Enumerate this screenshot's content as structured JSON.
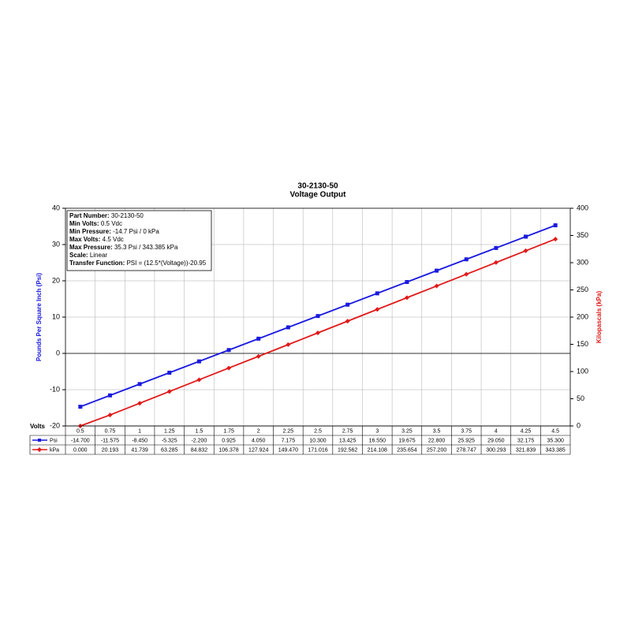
{
  "chart_data": {
    "type": "line",
    "title": "30-2130-50",
    "subtitle": "Voltage Output",
    "x_label": "Volts",
    "y_label": "Pounds Per Square Inch (Psi)",
    "y2_label": "Kilopascals (kPa)",
    "categories": [
      "0.5",
      "0.75",
      "1",
      "1.25",
      "1.5",
      "1.75",
      "2",
      "2.25",
      "2.5",
      "2.75",
      "3",
      "3.25",
      "3.5",
      "3.75",
      "4",
      "4.25",
      "4.5"
    ],
    "series": [
      {
        "name": "Psi",
        "color": "#1a1adf",
        "marker": "square",
        "values": [
          -14.7,
          -11.575,
          -8.45,
          -5.325,
          -2.2,
          0.925,
          4.05,
          7.175,
          10.3,
          13.425,
          16.55,
          19.675,
          22.8,
          25.925,
          29.05,
          32.175,
          35.3
        ],
        "value_labels": [
          "-14.700",
          "-11.575",
          "-8.450",
          "-5.325",
          "-2.200",
          "0.925",
          "4.050",
          "7.175",
          "10.300",
          "13.425",
          "16.550",
          "19.675",
          "22.800",
          "25.925",
          "29.050",
          "32.175",
          "35.300"
        ]
      },
      {
        "name": "kPa",
        "color": "#e01919",
        "marker": "diamond",
        "axis": "y2",
        "values": [
          0,
          20.193,
          41.739,
          63.285,
          84.832,
          106.378,
          127.924,
          149.47,
          171.016,
          192.562,
          214.108,
          235.654,
          257.2,
          278.747,
          300.293,
          321.839,
          343.385
        ],
        "value_labels": [
          "0.000",
          "20.193",
          "41.739",
          "63.285",
          "84.832",
          "106.378",
          "127.924",
          "149.470",
          "171.016",
          "192.562",
          "214.108",
          "235.654",
          "257.200",
          "278.747",
          "300.293",
          "321.839",
          "343.385"
        ]
      }
    ],
    "ylim": [
      -20,
      40
    ],
    "yticks": [
      -20,
      -10,
      0,
      10,
      20,
      30,
      40
    ],
    "y2lim": [
      0,
      400
    ],
    "y2ticks": [
      0,
      50,
      100,
      150,
      200,
      250,
      300,
      350,
      400
    ],
    "grid": true,
    "annotations": [
      {
        "label": "Part Number:",
        "value": "30-2130-50"
      },
      {
        "label": "Min Volts:",
        "value": "0.5 Vdc"
      },
      {
        "label": "Min Pressure:",
        "value": "-14.7 Psi / 0 kPa"
      },
      {
        "label": "Max Volts:",
        "value": "4.5 Vdc"
      },
      {
        "label": "Max Pressure:",
        "value": "35.3 Psi / 343.385 kPa"
      },
      {
        "label": "Scale:",
        "value": "Linear"
      },
      {
        "label": "Transfer Function:",
        "value": "PSI = (12.5*(Voltage))-20.95"
      }
    ]
  }
}
